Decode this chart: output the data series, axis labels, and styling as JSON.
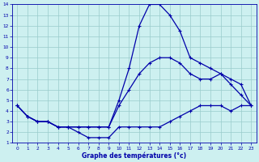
{
  "xlabel": "Graphe des températures (°c)",
  "bg_color": "#cdf0f0",
  "line_color": "#0000aa",
  "grid_color": "#99cccc",
  "xlim": [
    -0.5,
    23.5
  ],
  "ylim": [
    1,
    14
  ],
  "xticks": [
    0,
    1,
    2,
    3,
    4,
    5,
    6,
    7,
    8,
    9,
    10,
    11,
    12,
    13,
    14,
    15,
    16,
    17,
    18,
    19,
    20,
    21,
    22,
    23
  ],
  "yticks": [
    1,
    2,
    3,
    4,
    5,
    6,
    7,
    8,
    9,
    10,
    11,
    12,
    13,
    14
  ],
  "line1_x": [
    0,
    1,
    2,
    3,
    4,
    5,
    6,
    7,
    8,
    9,
    10,
    11,
    12,
    13,
    14,
    15,
    16,
    17,
    18,
    19,
    20,
    21,
    22,
    23
  ],
  "line1_y": [
    4.5,
    3.5,
    3.0,
    3.0,
    2.5,
    2.5,
    2.0,
    1.5,
    1.5,
    1.5,
    2.5,
    2.5,
    2.5,
    2.5,
    2.5,
    3.0,
    3.5,
    4.0,
    4.5,
    4.5,
    4.5,
    4.0,
    4.5,
    4.5
  ],
  "line2_x": [
    0,
    1,
    2,
    3,
    4,
    5,
    6,
    7,
    8,
    9,
    10,
    11,
    12,
    13,
    14,
    15,
    16,
    17,
    18,
    19,
    20,
    21,
    22,
    23
  ],
  "line2_y": [
    4.5,
    3.5,
    3.0,
    3.0,
    2.5,
    2.5,
    2.5,
    2.5,
    2.5,
    2.5,
    5.0,
    8.0,
    12.0,
    14.0,
    14.0,
    13.0,
    11.5,
    9.0,
    8.5,
    8.0,
    7.5,
    6.5,
    5.5,
    4.5
  ],
  "line3_x": [
    0,
    1,
    2,
    3,
    4,
    5,
    6,
    7,
    8,
    9,
    10,
    11,
    12,
    13,
    14,
    15,
    16,
    17,
    18,
    19,
    20,
    21,
    22,
    23
  ],
  "line3_y": [
    4.5,
    3.5,
    3.0,
    3.0,
    2.5,
    2.5,
    2.5,
    2.5,
    2.5,
    2.5,
    4.5,
    6.0,
    7.5,
    8.5,
    9.0,
    9.0,
    8.5,
    7.5,
    7.0,
    7.0,
    7.5,
    7.0,
    6.5,
    4.5
  ]
}
